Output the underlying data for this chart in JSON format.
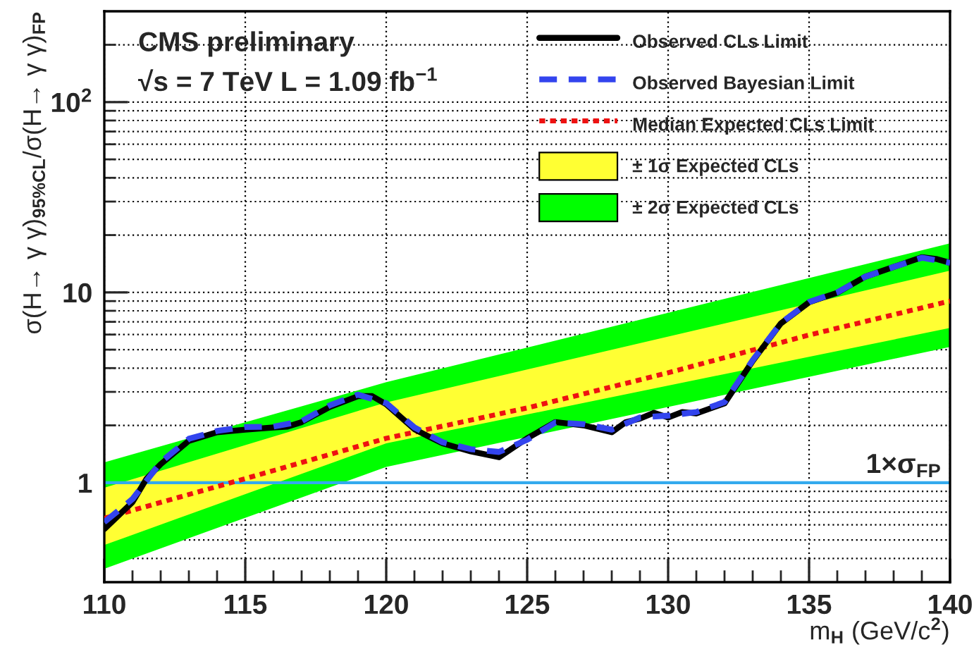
{
  "chart_data": {
    "type": "line",
    "xlabel": "m$_{H}$ (GeV/c$^{2}$)",
    "ylabel": "σ(H→ γ γ)$_{95%CL}$/σ(H→ γ γ)$_{FP}$",
    "annotations": [
      "CMS preliminary",
      "√s = 7 TeV L = 1.09 fb$^{−1}$"
    ],
    "log": "y",
    "xlim": [
      110,
      140
    ],
    "ylim": [
      0.3,
      300
    ],
    "xticks": [
      110,
      {
        "value": 111,
        "label": null
      },
      {
        "value": 112,
        "label": null
      },
      {
        "value": 113,
        "label": null
      },
      {
        "value": 114,
        "label": null
      },
      115,
      {
        "value": 116,
        "label": null
      },
      {
        "value": 117,
        "label": null
      },
      {
        "value": 118,
        "label": null
      },
      {
        "value": 119,
        "label": null
      },
      120,
      {
        "value": 121,
        "label": null
      },
      {
        "value": 122,
        "label": null
      },
      {
        "value": 123,
        "label": null
      },
      {
        "value": 124,
        "label": null
      },
      125,
      {
        "value": 126,
        "label": null
      },
      {
        "value": 127,
        "label": null
      },
      {
        "value": 128,
        "label": null
      },
      {
        "value": 129,
        "label": null
      },
      130,
      {
        "value": 131,
        "label": null
      },
      {
        "value": 132,
        "label": null
      },
      {
        "value": 133,
        "label": null
      },
      {
        "value": 134,
        "label": null
      },
      135,
      {
        "value": 136,
        "label": null
      },
      {
        "value": 137,
        "label": null
      },
      {
        "value": 138,
        "label": null
      },
      {
        "value": 139,
        "label": null
      },
      140
    ],
    "yticks": [
      {
        "value": 0.4,
        "label": null
      },
      {
        "value": 0.5,
        "label": null
      },
      {
        "value": 0.6,
        "label": null
      },
      {
        "value": 0.7,
        "label": null
      },
      {
        "value": 0.8,
        "label": null
      },
      {
        "value": 0.9,
        "label": null
      },
      1,
      {
        "value": 2,
        "label": null
      },
      {
        "value": 3,
        "label": null
      },
      {
        "value": 4,
        "label": null
      },
      {
        "value": 5,
        "label": null
      },
      {
        "value": 6,
        "label": null
      },
      {
        "value": 7,
        "label": null
      },
      {
        "value": 8,
        "label": null
      },
      {
        "value": 9,
        "label": null
      },
      10,
      {
        "value": 20,
        "label": null
      },
      {
        "value": 30,
        "label": null
      },
      {
        "value": 40,
        "label": null
      },
      {
        "value": 50,
        "label": null
      },
      {
        "value": 60,
        "label": null
      },
      {
        "value": 70,
        "label": null
      },
      {
        "value": 80,
        "label": null
      },
      {
        "value": 90,
        "label": null
      },
      {
        "value": 100,
        "label": "10$^{2}$"
      },
      {
        "value": 200,
        "label": null
      }
    ],
    "grid": true,
    "legend": "top right",
    "ref_lines": [
      {
        "axis": "y",
        "value": 1,
        "label": "1×σ$_{FP}$",
        "color": "#33aaee",
        "line_style": "solid"
      }
    ],
    "series": [
      {
        "name": "± 2σ Expected CLs",
        "type": "line",
        "color": "#00ff00",
        "x": [
          110,
          120,
          140
        ],
        "values": [
          null,
          null,
          null
        ],
        "lower": [
          0.353,
          1.21,
          5.17
        ],
        "upper": [
          1.28,
          3.37,
          18.1
        ]
      },
      {
        "name": "± 1σ Expected CLs",
        "type": "line",
        "color": "#ffff33",
        "x": [
          110,
          120,
          140
        ],
        "values": [
          null,
          null,
          null
        ],
        "lower": [
          0.47,
          1.61,
          6.5
        ],
        "upper": [
          0.94,
          2.64,
          13.0
        ]
      },
      {
        "name": "Median Expected CLs Limit",
        "color": "#ee1111",
        "line_style": "dotted",
        "x": [
          110,
          115,
          120,
          125,
          130,
          135,
          140
        ],
        "values": [
          0.65,
          1.05,
          1.71,
          2.47,
          3.78,
          5.97,
          9.0
        ]
      },
      {
        "name": "Observed CLs Limit",
        "color": "#000000",
        "line_style": "solid",
        "x": [
          110,
          111,
          111.5,
          112,
          113,
          114,
          115,
          116,
          116.5,
          117,
          118,
          119,
          119.5,
          120,
          121,
          121.5,
          122,
          123,
          124,
          125,
          126,
          127,
          128,
          128.5,
          129,
          129.5,
          130,
          130.5,
          131,
          132,
          133,
          134,
          135,
          136,
          137,
          138,
          139,
          139.5,
          140
        ],
        "values": [
          0.57,
          0.79,
          1.05,
          1.25,
          1.66,
          1.84,
          1.9,
          1.95,
          1.97,
          2.08,
          2.5,
          2.85,
          2.85,
          2.58,
          1.91,
          1.75,
          1.61,
          1.46,
          1.36,
          1.71,
          2.08,
          2.0,
          1.84,
          2.08,
          2.17,
          2.33,
          2.2,
          2.35,
          2.31,
          2.61,
          4.36,
          6.87,
          8.87,
          9.95,
          12.1,
          13.6,
          15.3,
          15.0,
          14.3
        ]
      },
      {
        "name": "Observed Bayesian Limit",
        "color": "#3344ee",
        "line_style": "dashed",
        "x": [
          110,
          111,
          112,
          113,
          114,
          115,
          116,
          117,
          118,
          119,
          120,
          121,
          122,
          123,
          124,
          125,
          126,
          127,
          128,
          129,
          130,
          131,
          132,
          133,
          134,
          135,
          136,
          137,
          138,
          139,
          140
        ],
        "values": [
          0.62,
          0.82,
          1.28,
          1.7,
          1.87,
          1.96,
          1.97,
          2.1,
          2.55,
          2.9,
          2.62,
          1.95,
          1.63,
          1.5,
          1.45,
          1.68,
          2.07,
          2.03,
          1.9,
          2.2,
          2.25,
          2.35,
          2.65,
          4.4,
          6.9,
          8.9,
          10.0,
          12.1,
          13.6,
          15.2,
          14.3
        ]
      }
    ]
  }
}
